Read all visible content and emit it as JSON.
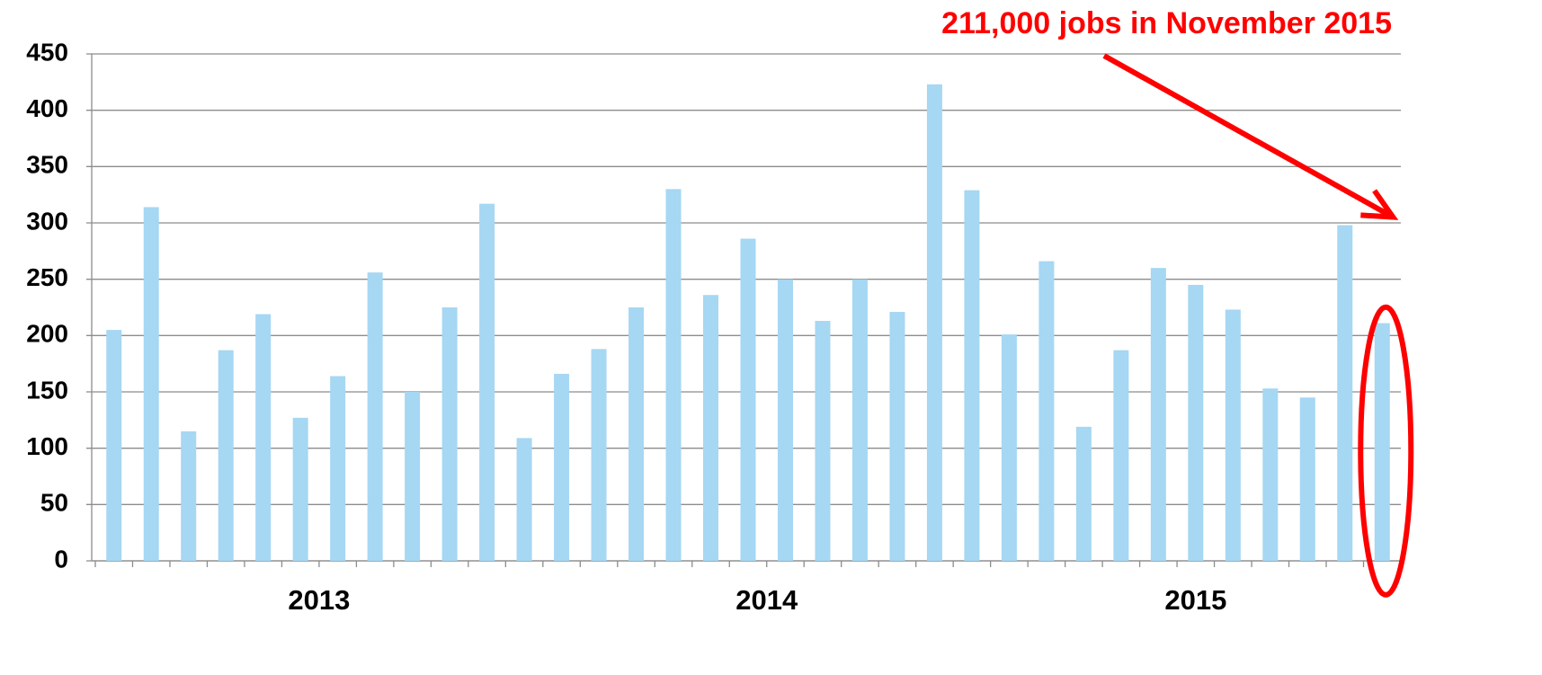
{
  "chart_data": {
    "type": "bar",
    "annotation": "211,000 jobs in November 2015",
    "categories": [
      null,
      null,
      null,
      null,
      null,
      null,
      null,
      null,
      null,
      null,
      null,
      null,
      null,
      null,
      null,
      null,
      null,
      null,
      null,
      null,
      null,
      null,
      null,
      null,
      null,
      null,
      null,
      null,
      null,
      null,
      null,
      null,
      null,
      null,
      null
    ],
    "year_labels": [
      "2013",
      "2014",
      "2015"
    ],
    "values": [
      205,
      314,
      115,
      187,
      219,
      127,
      164,
      256,
      150,
      225,
      317,
      109,
      166,
      188,
      225,
      330,
      236,
      286,
      250,
      213,
      250,
      221,
      423,
      329,
      201,
      266,
      119,
      187,
      260,
      245,
      223,
      153,
      145,
      298,
      211
    ],
    "color": "#a6d7f3",
    "annotation_color": "#ff0000",
    "ylim": [
      0,
      450
    ],
    "yticks": [
      0,
      50,
      100,
      150,
      200,
      250,
      300,
      350,
      400,
      450
    ],
    "grid": true
  }
}
